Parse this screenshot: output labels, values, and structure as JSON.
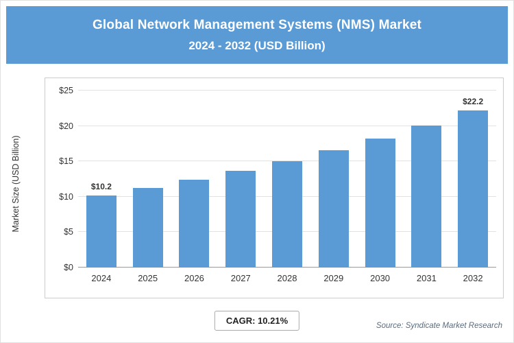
{
  "header": {
    "title_line1": "Global Network Management Systems (NMS) Market",
    "title_line2": "2024 - 2032 (USD Billion)"
  },
  "chart_data": {
    "type": "bar",
    "title": "Global Network Management Systems (NMS) Market 2024 - 2032 (USD Billion)",
    "categories": [
      "2024",
      "2025",
      "2026",
      "2027",
      "2028",
      "2029",
      "2030",
      "2031",
      "2032"
    ],
    "values": [
      10.2,
      11.2,
      12.4,
      13.7,
      15.0,
      16.6,
      18.2,
      20.1,
      22.2
    ],
    "xlabel": "",
    "ylabel": "Market Size (USD Billion)",
    "ylim": [
      0,
      25
    ],
    "ytick_labels": [
      "$0",
      "$5",
      "$10",
      "$15",
      "$20",
      "$25"
    ],
    "bar_color": "#5B9BD5",
    "grid": true,
    "legend": false,
    "data_labels": {
      "first": "$10.2",
      "last": "$22.2"
    }
  },
  "footer": {
    "cagr_label": "CAGR: 10.21%",
    "source": "Source: Syndicate Market Research"
  },
  "colors": {
    "header_bg": "#5B9BD5",
    "bar": "#5B9BD5",
    "gridline": "#e2e2e2",
    "axis_text": "#333333"
  }
}
